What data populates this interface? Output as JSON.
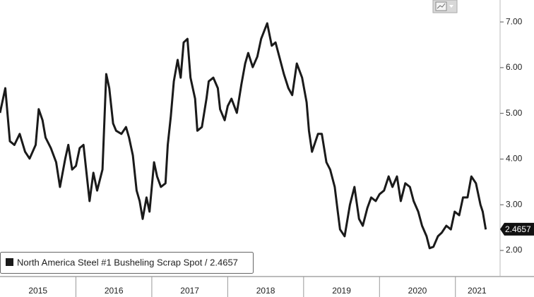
{
  "chart_data": {
    "type": "line",
    "x": [
      2015.0,
      2015.07,
      2015.13,
      2015.19,
      2015.26,
      2015.33,
      2015.39,
      2015.47,
      2015.51,
      2015.56,
      2015.6,
      2015.67,
      2015.74,
      2015.79,
      2015.86,
      2015.9,
      2015.95,
      2016.0,
      2016.05,
      2016.1,
      2016.13,
      2016.18,
      2016.23,
      2016.28,
      2016.35,
      2016.4,
      2016.44,
      2016.49,
      2016.53,
      2016.6,
      2016.66,
      2016.7,
      2016.75,
      2016.8,
      2016.84,
      2016.88,
      2016.93,
      2016.97,
      2017.03,
      2017.07,
      2017.12,
      2017.18,
      2017.21,
      2017.25,
      2017.29,
      2017.34,
      2017.38,
      2017.42,
      2017.47,
      2017.51,
      2017.57,
      2017.6,
      2017.66,
      2017.72,
      2017.75,
      2017.81,
      2017.87,
      2017.9,
      2017.96,
      2018.0,
      2018.05,
      2018.12,
      2018.18,
      2018.23,
      2018.27,
      2018.33,
      2018.39,
      2018.44,
      2018.52,
      2018.58,
      2018.63,
      2018.68,
      2018.74,
      2018.8,
      2018.85,
      2018.91,
      2018.98,
      2019.04,
      2019.07,
      2019.11,
      2019.19,
      2019.24,
      2019.3,
      2019.35,
      2019.41,
      2019.45,
      2019.48,
      2019.54,
      2019.61,
      2019.67,
      2019.73,
      2019.78,
      2019.84,
      2019.89,
      2019.95,
      2020.0,
      2020.06,
      2020.12,
      2020.17,
      2020.23,
      2020.28,
      2020.34,
      2020.4,
      2020.45,
      2020.51,
      2020.56,
      2020.62,
      2020.66,
      2020.71,
      2020.77,
      2020.82,
      2020.88,
      2020.94,
      2020.99,
      2021.05,
      2021.1,
      2021.16,
      2021.21,
      2021.27,
      2021.33,
      2021.36,
      2021.4
    ],
    "series": [
      {
        "name": "North America Steel #1 Busheling Scrap Spot / 2.4657",
        "color": "#1a1a1a",
        "values": [
          5.01,
          5.55,
          4.39,
          4.31,
          4.55,
          4.16,
          4.01,
          4.31,
          5.09,
          4.85,
          4.47,
          4.24,
          3.93,
          3.39,
          4.01,
          4.31,
          3.77,
          3.85,
          4.24,
          4.31,
          3.85,
          3.08,
          3.7,
          3.31,
          3.77,
          5.86,
          5.55,
          4.78,
          4.62,
          4.55,
          4.7,
          4.47,
          4.08,
          3.31,
          3.08,
          2.69,
          3.16,
          2.85,
          3.93,
          3.62,
          3.39,
          3.47,
          4.31,
          4.93,
          5.7,
          6.17,
          5.78,
          6.55,
          6.63,
          5.78,
          5.32,
          4.62,
          4.7,
          5.32,
          5.7,
          5.78,
          5.55,
          5.09,
          4.85,
          5.16,
          5.32,
          5.01,
          5.63,
          6.09,
          6.32,
          6.01,
          6.24,
          6.63,
          6.97,
          6.48,
          6.55,
          6.24,
          5.86,
          5.55,
          5.4,
          6.09,
          5.78,
          5.24,
          4.62,
          4.16,
          4.55,
          4.55,
          3.93,
          3.77,
          3.39,
          2.85,
          2.46,
          2.31,
          3.0,
          3.39,
          2.69,
          2.54,
          2.93,
          3.16,
          3.08,
          3.23,
          3.31,
          3.62,
          3.39,
          3.62,
          3.08,
          3.47,
          3.39,
          3.08,
          2.85,
          2.54,
          2.31,
          2.05,
          2.08,
          2.31,
          2.39,
          2.54,
          2.46,
          2.85,
          2.77,
          3.16,
          3.16,
          3.62,
          3.47,
          3.0,
          2.85,
          2.46
        ]
      }
    ],
    "last_value": 2.4657,
    "xlim": [
      2015,
      2021.57
    ],
    "xticks": [
      2016,
      2017,
      2018,
      2019,
      2020,
      2021
    ],
    "x_period_labels": [
      "2015",
      "2016",
      "2017",
      "2018",
      "2019",
      "2020",
      "2021"
    ],
    "ylim": [
      1.46,
      7.48
    ],
    "yticks": [
      {
        "value": 2,
        "label": "2.00"
      },
      {
        "value": 3,
        "label": "3.00"
      },
      {
        "value": 4,
        "label": "4.00"
      },
      {
        "value": 5,
        "label": "5.00"
      },
      {
        "value": 6,
        "label": "6.00"
      },
      {
        "value": 7,
        "label": "7.00"
      }
    ]
  }
}
